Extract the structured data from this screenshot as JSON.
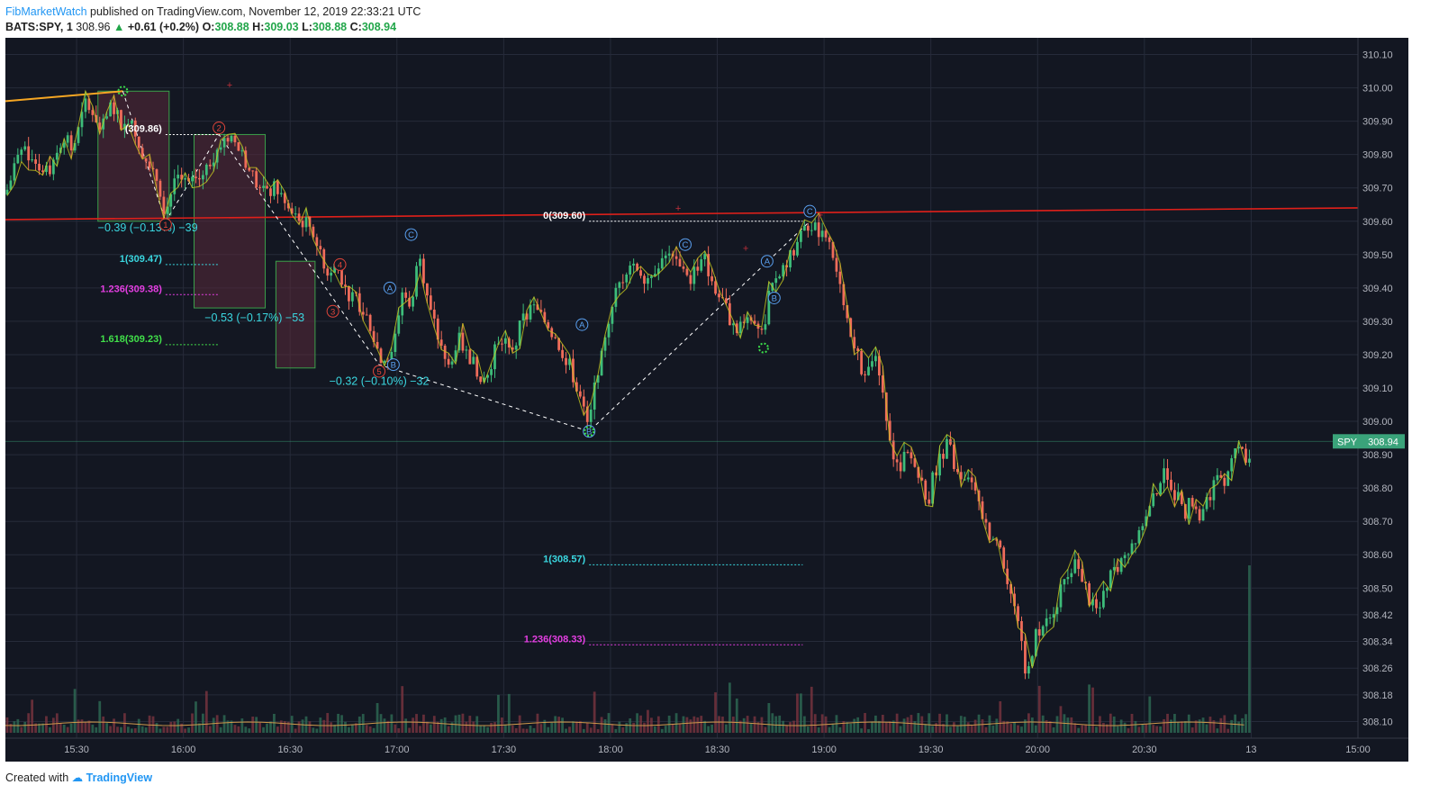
{
  "header": {
    "author": "FibMarketWatch",
    "published": "published on TradingView.com, November 12, 2019 22:33:21 UTC",
    "symbol": "BATS:SPY, 1",
    "last": "308.96",
    "arrow": "▲",
    "change": "+0.61 (+0.2%)",
    "o_label": "O:",
    "o": "308.88",
    "h_label": "H:",
    "h": "309.03",
    "l_label": "L:",
    "l": "308.88",
    "c_label": "C:",
    "c": "308.94"
  },
  "footer": {
    "created_with": "Created with",
    "brand": "TradingView"
  },
  "colors": {
    "background": "#131722",
    "grid": "#262b3a",
    "up": "#3dbd7a",
    "down": "#f06c5a",
    "wave_line": "#c8c81e",
    "trend_line": "#e0201a",
    "lead_line": "#f5a623",
    "fib_cyan": "#3ad7e0",
    "fib_magenta": "#e43ee2",
    "fib_green": "#41e04a",
    "fib_white": "#ffffff",
    "box_fill": "#5a2a3a",
    "box_border": "#3aa04a",
    "price_tag": "#3aa37a"
  },
  "chart_data": {
    "type": "candlestick",
    "title": "",
    "symbol_tag": "SPY",
    "symbol_tag_value": "308.94",
    "y_ticks": [
      "310.10",
      "310.00",
      "309.90",
      "309.80",
      "309.70",
      "309.60",
      "309.50",
      "309.40",
      "309.30",
      "309.20",
      "309.10",
      "309.00",
      "308.90",
      "308.80",
      "308.70",
      "308.60",
      "308.50",
      "308.42",
      "308.34",
      "308.26",
      "308.18",
      "308.10"
    ],
    "x_ticks": [
      "15:30",
      "16:00",
      "16:30",
      "17:00",
      "17:30",
      "18:00",
      "18:30",
      "19:00",
      "19:30",
      "20:00",
      "20:30",
      "13",
      "15:00"
    ],
    "x_minutes": [
      930,
      960,
      990,
      1020,
      1050,
      1080,
      1110,
      1140,
      1170,
      1200,
      1230,
      1260,
      1290
    ],
    "x_range_minutes": [
      910,
      1290
    ],
    "last_candle_minute": 1260,
    "ylim": [
      308.05,
      310.15
    ],
    "price_path": [
      [
        910,
        309.68
      ],
      [
        915,
        309.83
      ],
      [
        918,
        309.78
      ],
      [
        922,
        309.75
      ],
      [
        927,
        309.87
      ],
      [
        928,
        309.8
      ],
      [
        930,
        309.85
      ],
      [
        933,
        309.97
      ],
      [
        935,
        309.92
      ],
      [
        937,
        309.87
      ],
      [
        940,
        309.95
      ],
      [
        943,
        309.88
      ],
      [
        945,
        309.92
      ],
      [
        947,
        309.85
      ],
      [
        950,
        309.77
      ],
      [
        953,
        309.72
      ],
      [
        955,
        309.62
      ],
      [
        958,
        309.75
      ],
      [
        961,
        309.7
      ],
      [
        964,
        309.72
      ],
      [
        967,
        309.77
      ],
      [
        970,
        309.83
      ],
      [
        973,
        309.86
      ],
      [
        975,
        309.83
      ],
      [
        978,
        309.77
      ],
      [
        980,
        309.72
      ],
      [
        983,
        309.68
      ],
      [
        986,
        309.7
      ],
      [
        989,
        309.64
      ],
      [
        992,
        309.6
      ],
      [
        995,
        309.6
      ],
      [
        998,
        309.52
      ],
      [
        1000,
        309.44
      ],
      [
        1003,
        309.48
      ],
      [
        1006,
        309.38
      ],
      [
        1009,
        309.36
      ],
      [
        1012,
        309.3
      ],
      [
        1015,
        309.2
      ],
      [
        1018,
        309.18
      ],
      [
        1020,
        309.3
      ],
      [
        1022,
        309.42
      ],
      [
        1024,
        309.3
      ],
      [
        1026,
        309.55
      ],
      [
        1028,
        309.4
      ],
      [
        1030,
        309.3
      ],
      [
        1032,
        309.24
      ],
      [
        1034,
        309.15
      ],
      [
        1037,
        309.25
      ],
      [
        1040,
        309.2
      ],
      [
        1043,
        309.15
      ],
      [
        1045,
        309.12
      ],
      [
        1047,
        309.2
      ],
      [
        1050,
        309.25
      ],
      [
        1053,
        309.22
      ],
      [
        1055,
        309.3
      ],
      [
        1058,
        309.34
      ],
      [
        1060,
        309.32
      ],
      [
        1063,
        309.28
      ],
      [
        1066,
        309.22
      ],
      [
        1068,
        309.18
      ],
      [
        1070,
        309.12
      ],
      [
        1072,
        309.05
      ],
      [
        1074,
        308.97
      ],
      [
        1076,
        309.15
      ],
      [
        1078,
        309.2
      ],
      [
        1080,
        309.35
      ],
      [
        1083,
        309.42
      ],
      [
        1085,
        309.48
      ],
      [
        1088,
        309.46
      ],
      [
        1090,
        309.43
      ],
      [
        1093,
        309.47
      ],
      [
        1095,
        309.5
      ],
      [
        1098,
        309.48
      ],
      [
        1100,
        309.48
      ],
      [
        1102,
        309.42
      ],
      [
        1104,
        309.46
      ],
      [
        1106,
        309.5
      ],
      [
        1108,
        309.44
      ],
      [
        1110,
        309.38
      ],
      [
        1112,
        309.35
      ],
      [
        1114,
        309.3
      ],
      [
        1116,
        309.28
      ],
      [
        1118,
        309.33
      ],
      [
        1121,
        309.3
      ],
      [
        1123,
        309.27
      ],
      [
        1125,
        309.4
      ],
      [
        1128,
        309.44
      ],
      [
        1130,
        309.48
      ],
      [
        1132,
        309.52
      ],
      [
        1134,
        309.56
      ],
      [
        1136,
        309.6
      ],
      [
        1138,
        309.57
      ],
      [
        1140,
        309.58
      ],
      [
        1141,
        309.55
      ],
      [
        1143,
        309.48
      ],
      [
        1145,
        309.36
      ],
      [
        1147,
        309.26
      ],
      [
        1149,
        309.2
      ],
      [
        1151,
        309.15
      ],
      [
        1153,
        309.2
      ],
      [
        1155,
        309.18
      ],
      [
        1157,
        309.06
      ],
      [
        1159,
        308.92
      ],
      [
        1161,
        308.85
      ],
      [
        1163,
        308.9
      ],
      [
        1165,
        308.88
      ],
      [
        1167,
        308.82
      ],
      [
        1169,
        308.75
      ],
      [
        1171,
        308.85
      ],
      [
        1173,
        308.9
      ],
      [
        1175,
        308.93
      ],
      [
        1177,
        308.85
      ],
      [
        1179,
        308.8
      ],
      [
        1181,
        308.85
      ],
      [
        1183,
        308.78
      ],
      [
        1185,
        308.7
      ],
      [
        1187,
        308.62
      ],
      [
        1189,
        308.66
      ],
      [
        1191,
        308.55
      ],
      [
        1193,
        308.46
      ],
      [
        1195,
        308.35
      ],
      [
        1197,
        308.22
      ],
      [
        1199,
        308.35
      ],
      [
        1201,
        308.38
      ],
      [
        1203,
        308.4
      ],
      [
        1205,
        308.45
      ],
      [
        1207,
        308.5
      ],
      [
        1209,
        308.55
      ],
      [
        1211,
        308.58
      ],
      [
        1213,
        308.52
      ],
      [
        1215,
        308.45
      ],
      [
        1217,
        308.42
      ],
      [
        1219,
        308.5
      ],
      [
        1221,
        308.55
      ],
      [
        1223,
        308.58
      ],
      [
        1225,
        308.6
      ],
      [
        1227,
        308.65
      ],
      [
        1229,
        308.68
      ],
      [
        1231,
        308.72
      ],
      [
        1233,
        308.78
      ],
      [
        1235,
        308.85
      ],
      [
        1237,
        308.8
      ],
      [
        1239,
        308.78
      ],
      [
        1241,
        308.72
      ],
      [
        1243,
        308.76
      ],
      [
        1245,
        308.7
      ],
      [
        1247,
        308.75
      ],
      [
        1249,
        308.8
      ],
      [
        1251,
        308.86
      ],
      [
        1253,
        308.82
      ],
      [
        1255,
        308.88
      ],
      [
        1257,
        308.95
      ],
      [
        1259,
        308.86
      ],
      [
        1260,
        308.94
      ]
    ],
    "volume": {
      "note": "volume bars along the bottom of the pane; last bar is a spike",
      "max_relative": 1.0,
      "spike_minute": 1260
    },
    "annotations": {
      "fib_levels": [
        {
          "label": "1(309.47)",
          "color_key": "fib_cyan",
          "price": 309.47,
          "from": 955,
          "to": 970
        },
        {
          "label": "1.236(309.38)",
          "color_key": "fib_magenta",
          "price": 309.38,
          "from": 955,
          "to": 970
        },
        {
          "label": "1.618(309.23)",
          "color_key": "fib_green",
          "price": 309.23,
          "from": 955,
          "to": 970
        },
        {
          "label": "(309.86)",
          "color_key": "fib_white",
          "price": 309.86,
          "from": 955,
          "to": 970
        },
        {
          "label": "0(309.60)",
          "color_key": "fib_white",
          "price": 309.6,
          "from": 1074,
          "to": 1134
        },
        {
          "label": "1(308.57)",
          "color_key": "fib_cyan",
          "price": 308.57,
          "from": 1074,
          "to": 1134
        },
        {
          "label": "1.236(308.33)",
          "color_key": "fib_magenta",
          "price": 308.33,
          "from": 1074,
          "to": 1134
        }
      ],
      "measures": [
        {
          "text": "−0.39 (−0.13%) −39",
          "price": 309.57,
          "minute": 950
        },
        {
          "text": "−0.53 (−0.17%) −53",
          "price": 309.3,
          "minute": 980
        },
        {
          "text": "−0.32 (−0.10%) −32",
          "price": 309.11,
          "minute": 1015
        }
      ],
      "waves_red": [
        {
          "t": "1",
          "minute": 955,
          "price": 309.59
        },
        {
          "t": "2",
          "minute": 970,
          "price": 309.88
        },
        {
          "t": "4",
          "minute": 1004,
          "price": 309.47
        },
        {
          "t": "3",
          "minute": 1002,
          "price": 309.33
        },
        {
          "t": "5",
          "minute": 1015,
          "price": 309.15
        }
      ],
      "waves_blue": [
        {
          "t": "A",
          "minute": 1018,
          "price": 309.4
        },
        {
          "t": "B",
          "minute": 1019,
          "price": 309.17
        },
        {
          "t": "C",
          "minute": 1024,
          "price": 309.56
        },
        {
          "t": "A",
          "minute": 1072,
          "price": 309.29
        },
        {
          "t": "B",
          "minute": 1074,
          "price": 308.97
        },
        {
          "t": "C",
          "minute": 1101,
          "price": 309.53
        },
        {
          "t": "A",
          "minute": 1124,
          "price": 309.48
        },
        {
          "t": "B",
          "minute": 1126,
          "price": 309.37
        },
        {
          "t": "C",
          "minute": 1136,
          "price": 309.63
        }
      ]
    },
    "xlabel": "",
    "ylabel": "",
    "grid": true,
    "legend": "none"
  }
}
